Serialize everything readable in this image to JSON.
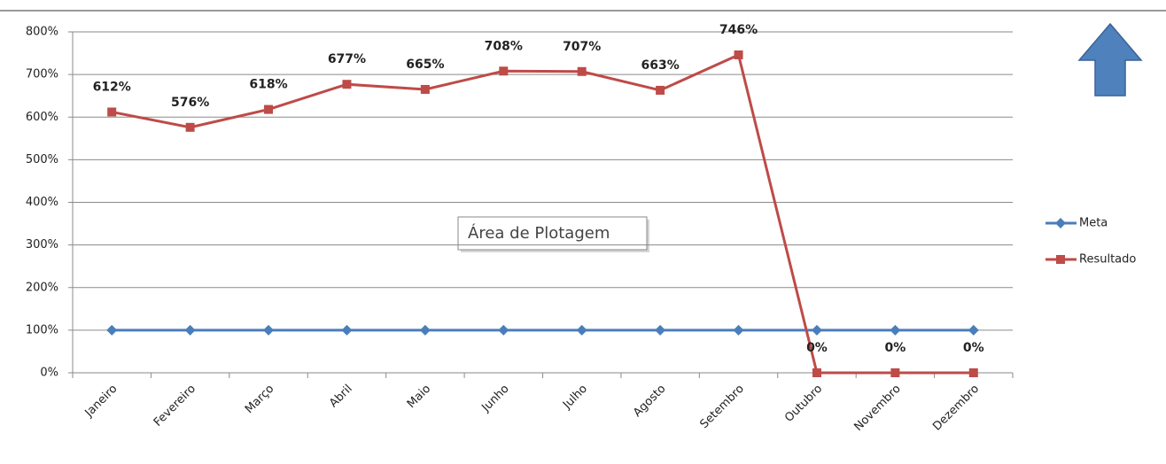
{
  "chart_data": {
    "type": "line",
    "categories": [
      "Janeiro",
      "Fevereiro",
      "Março",
      "Abril",
      "Maio",
      "Junho",
      "Julho",
      "Agosto",
      "Setembro",
      "Outubro",
      "Novembro",
      "Dezembro"
    ],
    "series": [
      {
        "name": "Meta",
        "color": "#4a7ebb",
        "marker": "diamond",
        "values": [
          100,
          100,
          100,
          100,
          100,
          100,
          100,
          100,
          100,
          100,
          100,
          100
        ]
      },
      {
        "name": "Resultado",
        "color": "#be4b48",
        "marker": "square",
        "values": [
          612,
          576,
          618,
          677,
          665,
          708,
          707,
          663,
          746,
          0,
          0,
          0
        ],
        "value_labels": [
          "612%",
          "576%",
          "618%",
          "677%",
          "665%",
          "708%",
          "707%",
          "663%",
          "746%",
          "0%",
          "0%",
          "0%"
        ]
      }
    ],
    "ylim": [
      0,
      800
    ],
    "yticks": [
      {
        "value": 0,
        "label": "0%"
      },
      {
        "value": 100,
        "label": "100%"
      },
      {
        "value": 200,
        "label": "200%"
      },
      {
        "value": 300,
        "label": "300%"
      },
      {
        "value": 400,
        "label": "400%"
      },
      {
        "value": 500,
        "label": "500%"
      },
      {
        "value": 600,
        "label": "600%"
      },
      {
        "value": 700,
        "label": "700%"
      },
      {
        "value": 800,
        "label": "800%"
      }
    ],
    "grid": true,
    "legend": "right",
    "annotation": "Área de Plotagem"
  }
}
